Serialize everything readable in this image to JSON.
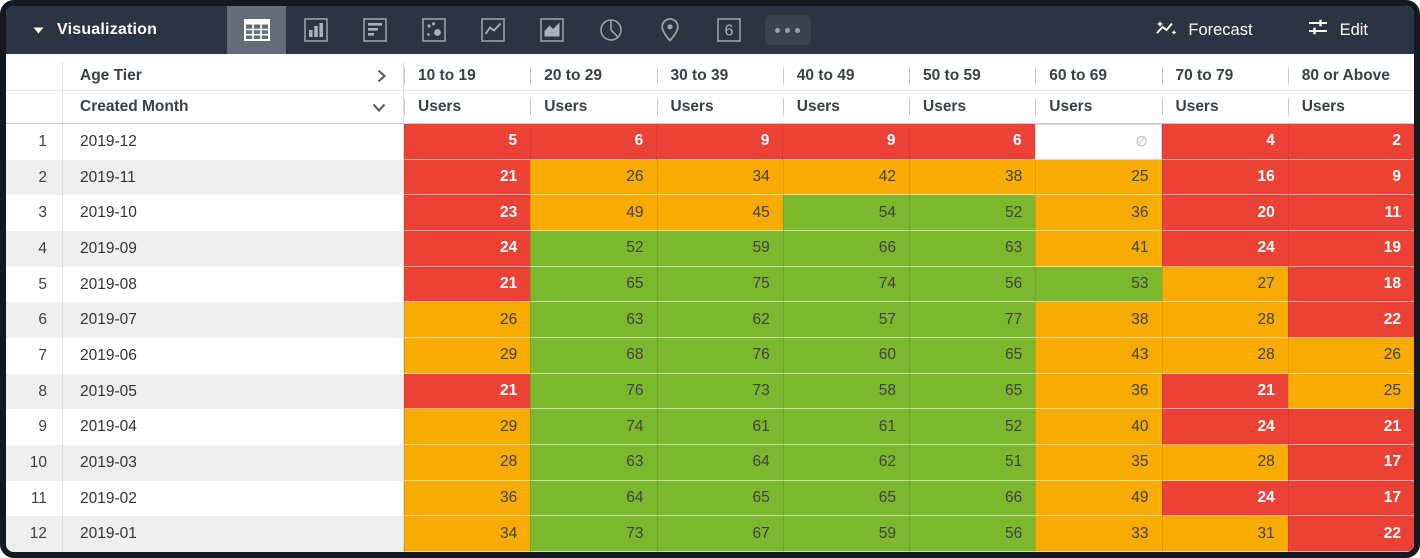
{
  "toolbar": {
    "title": "Visualization",
    "viz_types": [
      {
        "name": "table",
        "selected": true
      },
      {
        "name": "column-chart",
        "selected": false
      },
      {
        "name": "bar-chart",
        "selected": false
      },
      {
        "name": "scatterplot",
        "selected": false
      },
      {
        "name": "line-chart",
        "selected": false
      },
      {
        "name": "area-chart",
        "selected": false
      },
      {
        "name": "pie-chart",
        "selected": false
      },
      {
        "name": "map",
        "selected": false
      },
      {
        "name": "single-value",
        "selected": false
      },
      {
        "name": "more-options",
        "selected": false
      }
    ],
    "single_value_glyph": "6",
    "forecast_label": "Forecast",
    "edit_label": "Edit"
  },
  "table": {
    "pivot_field": "Age Tier",
    "row_field": "Created Month",
    "measure_label": "Users",
    "columns": [
      "10 to 19",
      "20 to 29",
      "30 to 39",
      "40 to 49",
      "50 to 59",
      "60 to 69",
      "70 to 79",
      "80 or Above"
    ],
    "null_symbol": "∅",
    "rows": [
      {
        "num": "1",
        "month": "2019-12",
        "cells": [
          {
            "v": "5",
            "c": "red"
          },
          {
            "v": "6",
            "c": "red"
          },
          {
            "v": "9",
            "c": "red"
          },
          {
            "v": "9",
            "c": "red"
          },
          {
            "v": "6",
            "c": "red"
          },
          {
            "v": "∅",
            "c": "null"
          },
          {
            "v": "4",
            "c": "red"
          },
          {
            "v": "2",
            "c": "red"
          }
        ]
      },
      {
        "num": "2",
        "month": "2019-11",
        "cells": [
          {
            "v": "21",
            "c": "red"
          },
          {
            "v": "26",
            "c": "orange"
          },
          {
            "v": "34",
            "c": "orange"
          },
          {
            "v": "42",
            "c": "orange"
          },
          {
            "v": "38",
            "c": "orange"
          },
          {
            "v": "25",
            "c": "orange"
          },
          {
            "v": "16",
            "c": "red"
          },
          {
            "v": "9",
            "c": "red"
          }
        ]
      },
      {
        "num": "3",
        "month": "2019-10",
        "cells": [
          {
            "v": "23",
            "c": "red"
          },
          {
            "v": "49",
            "c": "orange"
          },
          {
            "v": "45",
            "c": "orange"
          },
          {
            "v": "54",
            "c": "green"
          },
          {
            "v": "52",
            "c": "green"
          },
          {
            "v": "36",
            "c": "orange"
          },
          {
            "v": "20",
            "c": "red"
          },
          {
            "v": "11",
            "c": "red"
          }
        ]
      },
      {
        "num": "4",
        "month": "2019-09",
        "cells": [
          {
            "v": "24",
            "c": "red"
          },
          {
            "v": "52",
            "c": "green"
          },
          {
            "v": "59",
            "c": "green"
          },
          {
            "v": "66",
            "c": "green"
          },
          {
            "v": "63",
            "c": "green"
          },
          {
            "v": "41",
            "c": "orange"
          },
          {
            "v": "24",
            "c": "red"
          },
          {
            "v": "19",
            "c": "red"
          }
        ]
      },
      {
        "num": "5",
        "month": "2019-08",
        "cells": [
          {
            "v": "21",
            "c": "red"
          },
          {
            "v": "65",
            "c": "green"
          },
          {
            "v": "75",
            "c": "green"
          },
          {
            "v": "74",
            "c": "green"
          },
          {
            "v": "56",
            "c": "green"
          },
          {
            "v": "53",
            "c": "green"
          },
          {
            "v": "27",
            "c": "orange"
          },
          {
            "v": "18",
            "c": "red"
          }
        ]
      },
      {
        "num": "6",
        "month": "2019-07",
        "cells": [
          {
            "v": "26",
            "c": "orange"
          },
          {
            "v": "63",
            "c": "green"
          },
          {
            "v": "62",
            "c": "green"
          },
          {
            "v": "57",
            "c": "green"
          },
          {
            "v": "77",
            "c": "green"
          },
          {
            "v": "38",
            "c": "orange"
          },
          {
            "v": "28",
            "c": "orange"
          },
          {
            "v": "22",
            "c": "red"
          }
        ]
      },
      {
        "num": "7",
        "month": "2019-06",
        "cells": [
          {
            "v": "29",
            "c": "orange"
          },
          {
            "v": "68",
            "c": "green"
          },
          {
            "v": "76",
            "c": "green"
          },
          {
            "v": "60",
            "c": "green"
          },
          {
            "v": "65",
            "c": "green"
          },
          {
            "v": "43",
            "c": "orange"
          },
          {
            "v": "28",
            "c": "orange"
          },
          {
            "v": "26",
            "c": "orange"
          }
        ]
      },
      {
        "num": "8",
        "month": "2019-05",
        "cells": [
          {
            "v": "21",
            "c": "red"
          },
          {
            "v": "76",
            "c": "green"
          },
          {
            "v": "73",
            "c": "green"
          },
          {
            "v": "58",
            "c": "green"
          },
          {
            "v": "65",
            "c": "green"
          },
          {
            "v": "36",
            "c": "orange"
          },
          {
            "v": "21",
            "c": "red"
          },
          {
            "v": "25",
            "c": "orange"
          }
        ]
      },
      {
        "num": "9",
        "month": "2019-04",
        "cells": [
          {
            "v": "29",
            "c": "orange"
          },
          {
            "v": "74",
            "c": "green"
          },
          {
            "v": "61",
            "c": "green"
          },
          {
            "v": "61",
            "c": "green"
          },
          {
            "v": "52",
            "c": "green"
          },
          {
            "v": "40",
            "c": "orange"
          },
          {
            "v": "24",
            "c": "red"
          },
          {
            "v": "21",
            "c": "red"
          }
        ]
      },
      {
        "num": "10",
        "month": "2019-03",
        "cells": [
          {
            "v": "28",
            "c": "orange"
          },
          {
            "v": "63",
            "c": "green"
          },
          {
            "v": "64",
            "c": "green"
          },
          {
            "v": "62",
            "c": "green"
          },
          {
            "v": "51",
            "c": "green"
          },
          {
            "v": "35",
            "c": "orange"
          },
          {
            "v": "28",
            "c": "orange"
          },
          {
            "v": "17",
            "c": "red"
          }
        ]
      },
      {
        "num": "11",
        "month": "2019-02",
        "cells": [
          {
            "v": "36",
            "c": "orange"
          },
          {
            "v": "64",
            "c": "green"
          },
          {
            "v": "65",
            "c": "green"
          },
          {
            "v": "65",
            "c": "green"
          },
          {
            "v": "66",
            "c": "green"
          },
          {
            "v": "49",
            "c": "orange"
          },
          {
            "v": "24",
            "c": "red"
          },
          {
            "v": "17",
            "c": "red"
          }
        ]
      },
      {
        "num": "12",
        "month": "2019-01",
        "cells": [
          {
            "v": "34",
            "c": "orange"
          },
          {
            "v": "73",
            "c": "green"
          },
          {
            "v": "67",
            "c": "green"
          },
          {
            "v": "59",
            "c": "green"
          },
          {
            "v": "56",
            "c": "green"
          },
          {
            "v": "33",
            "c": "orange"
          },
          {
            "v": "31",
            "c": "orange"
          },
          {
            "v": "22",
            "c": "red"
          }
        ]
      }
    ]
  },
  "colors": {
    "red": "#EC4236",
    "orange": "#F8AB00",
    "green": "#7CB82E",
    "toolbar_bg": "#2B3442",
    "selected_slot": "#646C78"
  }
}
